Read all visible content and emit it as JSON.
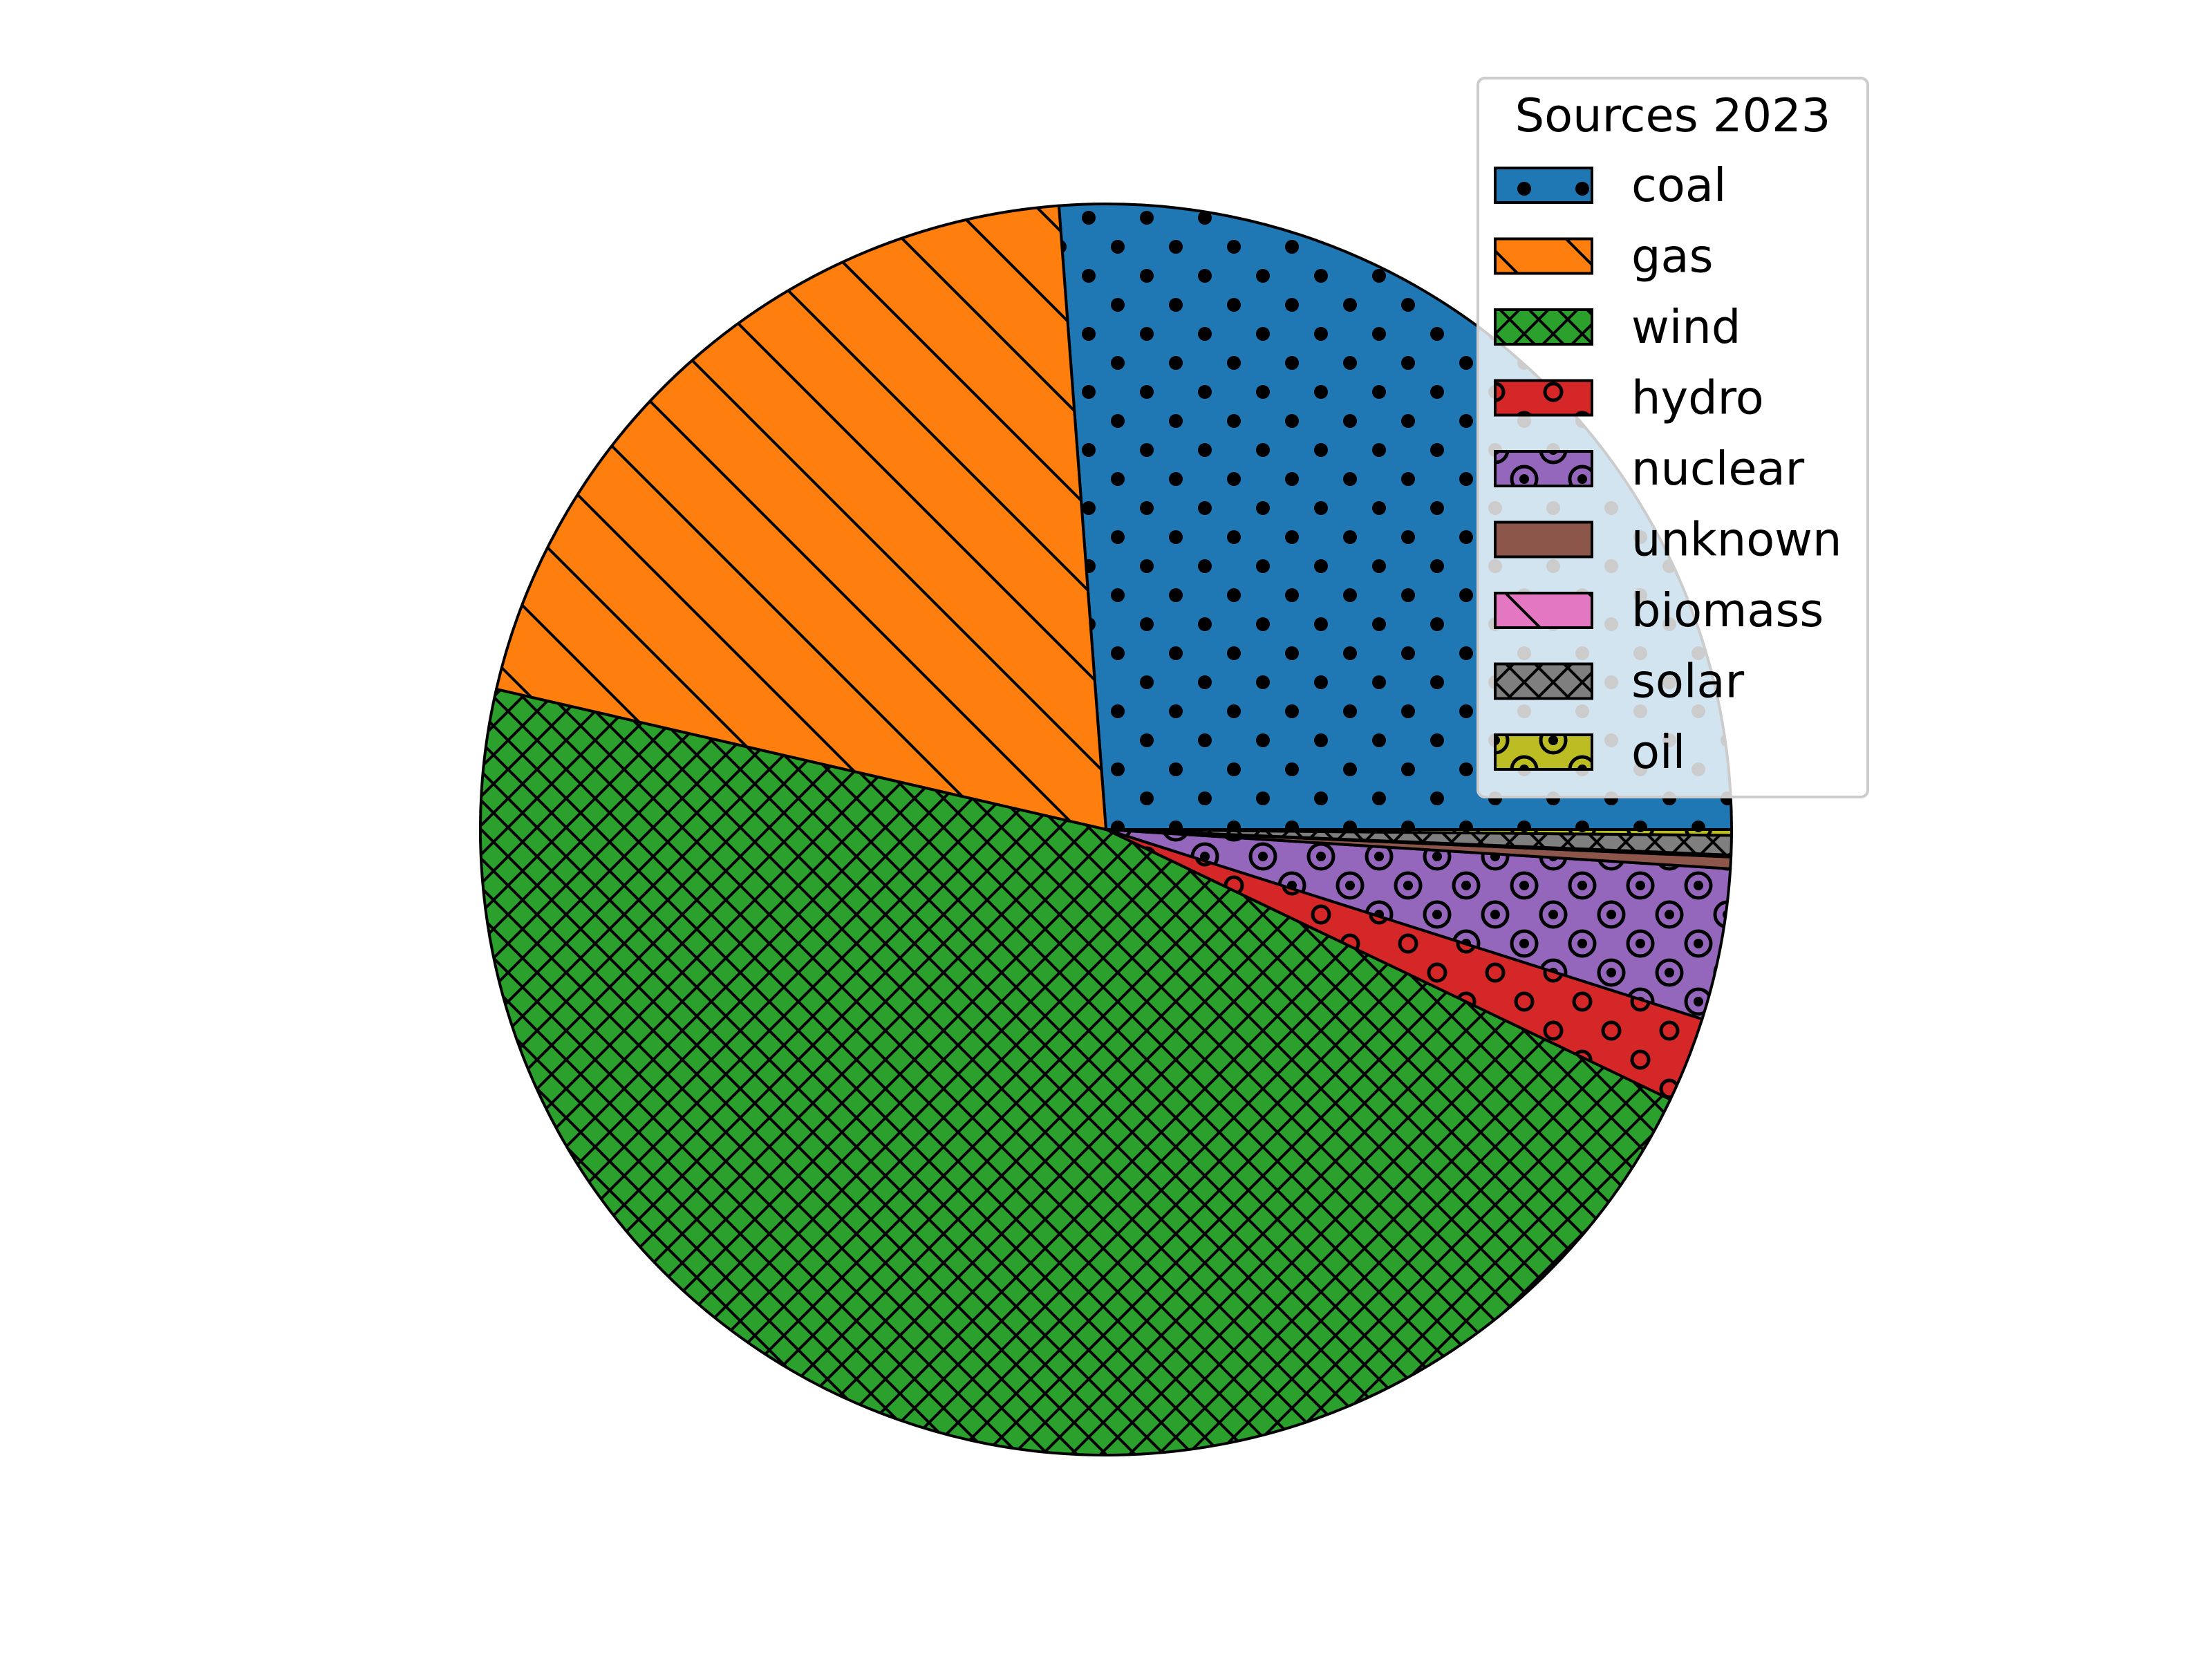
{
  "chart_data": {
    "type": "pie",
    "title": "",
    "start_angle_deg": 0,
    "direction": "counterclockwise",
    "legend": {
      "title": "Sources 2023",
      "placement": "upper-right"
    },
    "slices": [
      {
        "label": "coal",
        "value": 26.2,
        "color": "#1f77b4",
        "hatch": "dots"
      },
      {
        "label": "gas",
        "value": 20.2,
        "color": "#ff7f0e",
        "hatch": "backslash"
      },
      {
        "label": "wind",
        "value": 46.5,
        "color": "#2ca02c",
        "hatch": "cross"
      },
      {
        "label": "hydro",
        "value": 2.2,
        "color": "#d62728",
        "hatch": "small-rings"
      },
      {
        "label": "nuclear",
        "value": 3.9,
        "color": "#9467bd",
        "hatch": "rings"
      },
      {
        "label": "unknown",
        "value": 0.3,
        "color": "#8c564b",
        "hatch": "none"
      },
      {
        "label": "biomass",
        "value": 0.05,
        "color": "#e377c2",
        "hatch": "backslash"
      },
      {
        "label": "solar",
        "value": 0.5,
        "color": "#7f7f7f",
        "hatch": "cross"
      },
      {
        "label": "oil",
        "value": 0.15,
        "color": "#bcbd22",
        "hatch": "rings"
      }
    ]
  }
}
